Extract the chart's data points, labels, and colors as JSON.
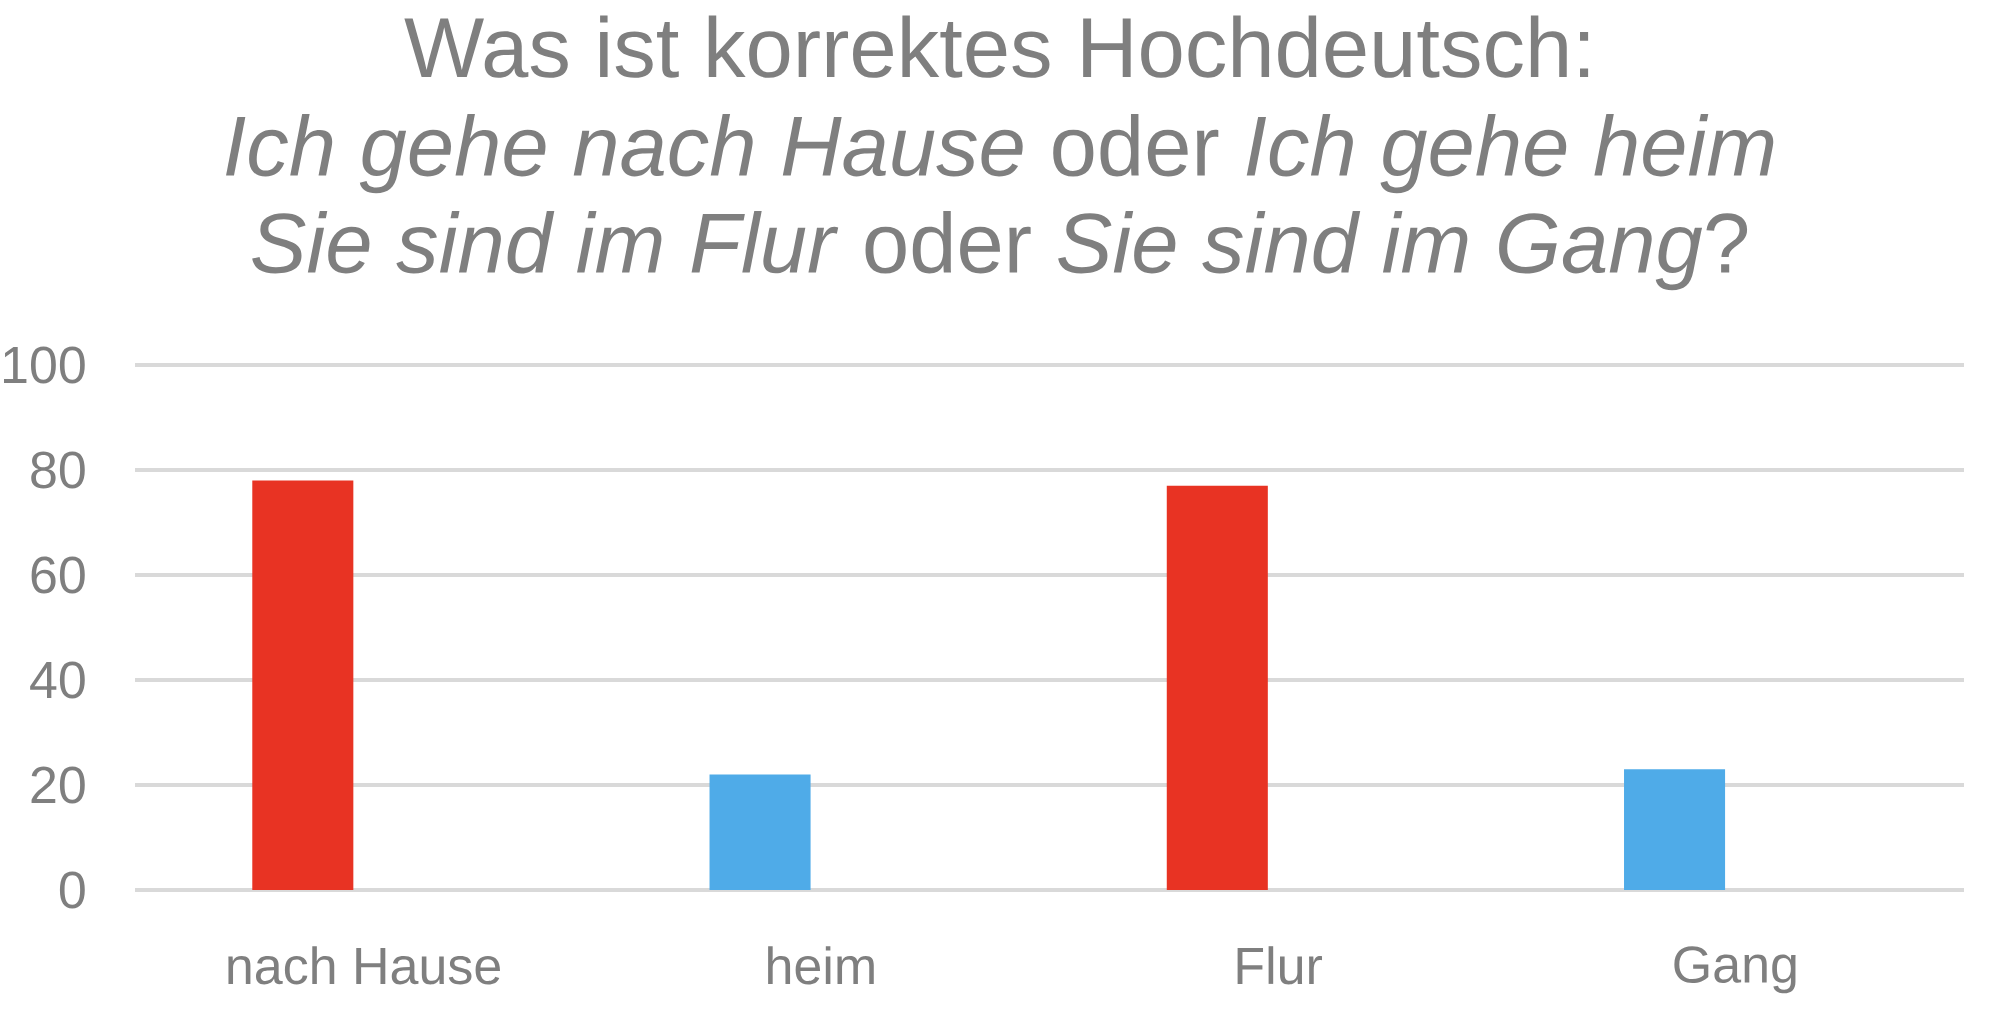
{
  "chart_data": {
    "type": "bar",
    "title": "Was ist korrektes Hochdeutsch:",
    "subtitle": "*Ich gehe nach Hause* oder *Ich gehe heim* *Sie sind im Flur* oder *Sie sind im Gang*?",
    "categories": [
      "nach Hause",
      "heim",
      "Flur",
      "Gang"
    ],
    "values": [
      78,
      22,
      77,
      23
    ],
    "colors": [
      "#e83323",
      "#4fabe8",
      "#e83323",
      "#4fabe8"
    ],
    "ylim": [
      0,
      100
    ],
    "yticks": [
      0,
      20,
      40,
      60,
      80,
      100
    ],
    "grid": "y"
  }
}
